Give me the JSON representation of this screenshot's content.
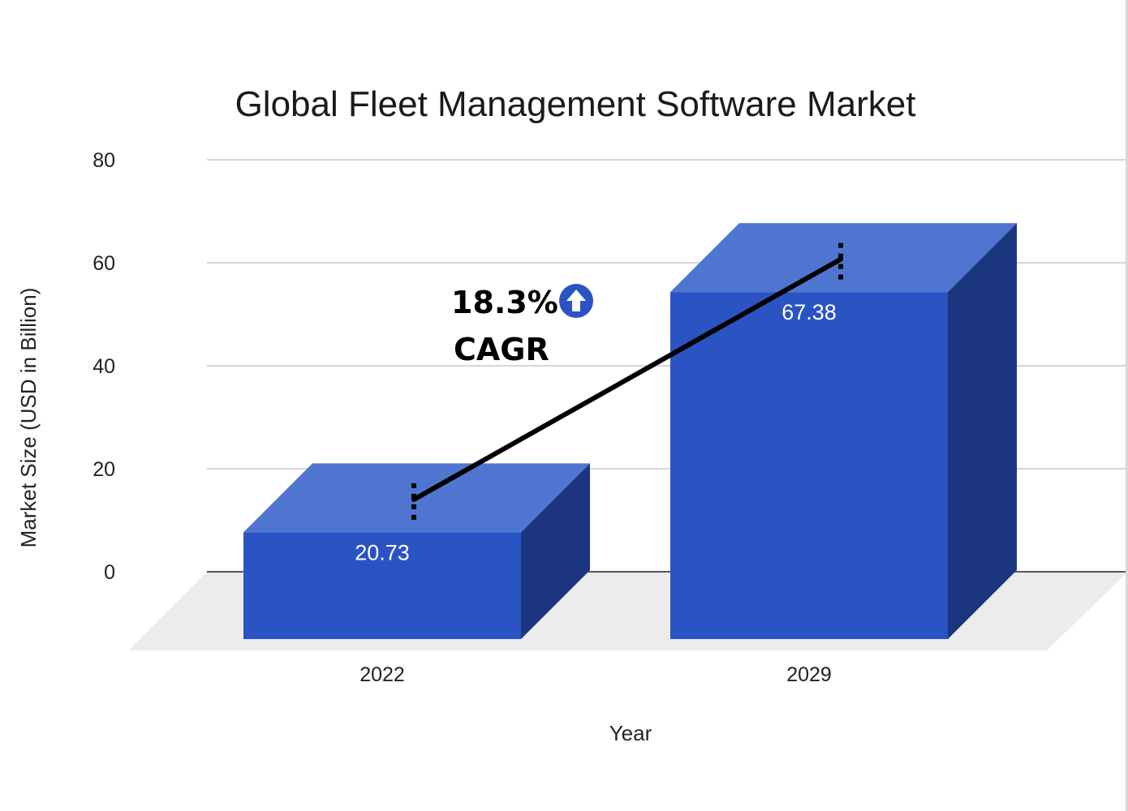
{
  "chart_data": {
    "type": "bar",
    "style": "3d-column",
    "title": "Global Fleet Management Software Market",
    "xlabel": "Year",
    "ylabel": "Market Size (USD in Billion)",
    "categories": [
      "2022",
      "2029"
    ],
    "values": [
      20.73,
      67.38
    ],
    "data_labels": [
      "20.73",
      "67.38"
    ],
    "ylim": [
      0,
      80
    ],
    "yticks": [
      "0",
      "20",
      "40",
      "60",
      "80"
    ],
    "grid": true,
    "legend": "none",
    "colors": {
      "bar_front": "#2a53c4",
      "bar_top": "#4e76d1",
      "bar_side": "#1b367f",
      "floor": "#ececec",
      "grid": "#d6d6d6",
      "baseline": "#555555",
      "trend_line": "#000000",
      "arrow_badge": "#2a53c4"
    },
    "annotation": {
      "value": "18.3%",
      "label": "CAGR",
      "icon": "up-arrow-circle-icon"
    }
  }
}
